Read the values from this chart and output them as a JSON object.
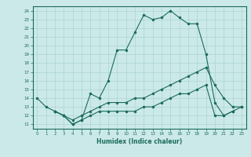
{
  "xlabel": "Humidex (Indice chaleur)",
  "bg_color": "#cce9e9",
  "line_color": "#1a6b5a",
  "grid_color": "#aad4d4",
  "xlim": [
    -0.5,
    23.5
  ],
  "ylim": [
    10.5,
    24.5
  ],
  "yticks": [
    11,
    12,
    13,
    14,
    15,
    16,
    17,
    18,
    19,
    20,
    21,
    22,
    23,
    24
  ],
  "xticks": [
    0,
    1,
    2,
    3,
    4,
    5,
    6,
    7,
    8,
    9,
    10,
    11,
    12,
    13,
    14,
    15,
    16,
    17,
    18,
    19,
    20,
    21,
    22,
    23
  ],
  "line1_x": [
    0,
    1,
    2,
    3,
    4,
    5,
    6,
    7,
    8,
    9,
    10,
    11,
    12,
    13,
    14,
    15,
    16,
    17,
    18,
    19,
    20,
    21,
    22
  ],
  "line1_y": [
    14.0,
    13.0,
    12.5,
    12.0,
    11.0,
    11.5,
    14.5,
    14.0,
    16.0,
    19.5,
    19.5,
    21.5,
    23.5,
    23.0,
    23.2,
    24.0,
    23.2,
    22.5,
    22.5,
    19.0,
    13.5,
    12.0,
    12.5
  ],
  "line2_x": [
    2,
    3,
    4,
    5,
    6,
    7,
    8,
    9,
    10,
    11,
    12,
    13,
    14,
    15,
    16,
    17,
    18,
    19,
    20,
    21,
    22,
    23
  ],
  "line2_y": [
    12.5,
    12.0,
    11.5,
    12.0,
    12.5,
    13.0,
    13.5,
    13.5,
    13.5,
    14.0,
    14.0,
    14.5,
    15.0,
    15.5,
    16.0,
    16.5,
    17.0,
    17.5,
    15.5,
    14.0,
    13.0,
    13.0
  ],
  "line3_x": [
    2,
    3,
    4,
    5,
    6,
    7,
    8,
    9,
    10,
    11,
    12,
    13,
    14,
    15,
    16,
    17,
    18,
    19,
    20,
    21,
    22,
    23
  ],
  "line3_y": [
    12.5,
    12.0,
    11.0,
    11.5,
    12.0,
    12.5,
    12.5,
    12.5,
    12.5,
    12.5,
    13.0,
    13.0,
    13.5,
    14.0,
    14.5,
    14.5,
    15.0,
    15.5,
    12.0,
    12.0,
    12.5,
    13.0
  ]
}
